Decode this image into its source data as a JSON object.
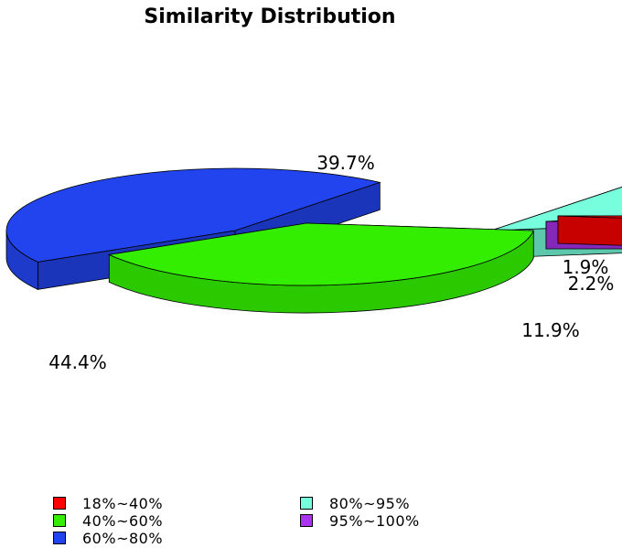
{
  "chart_data": {
    "type": "pie",
    "title": "Similarity Distribution",
    "categories": [
      "18%~40%",
      "40%~60%",
      "60%~80%",
      "80%~95%",
      "95%~100%"
    ],
    "values": [
      1.9,
      39.7,
      44.4,
      11.9,
      2.2
    ],
    "value_labels": [
      "1.9%",
      "39.7%",
      "44.4%",
      "11.9%",
      "2.2%"
    ],
    "colors": [
      "#ff0000",
      "#33ee00",
      "#2244ee",
      "#77ffdd",
      "#aa33ee"
    ],
    "exploded": true,
    "three_d": true,
    "legend_position": "bottom"
  }
}
